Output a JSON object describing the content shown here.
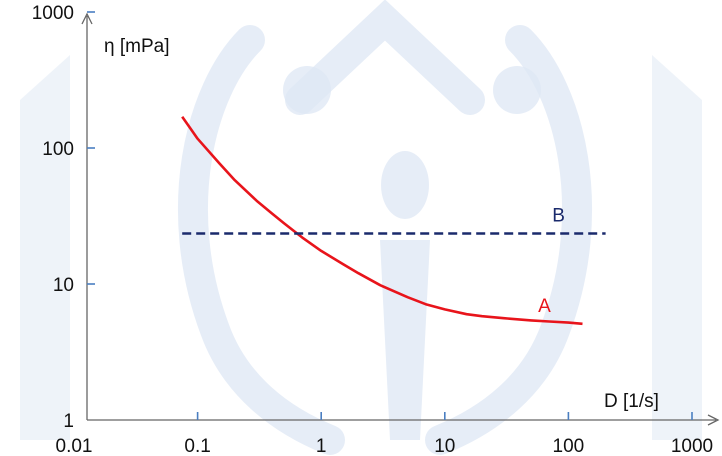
{
  "chart_data": {
    "type": "line",
    "xscale": "log",
    "yscale": "log",
    "xlim": [
      0.01,
      1000
    ],
    "ylim": [
      1,
      1000
    ],
    "x_ticks": [
      "0.01",
      "0.1",
      "1",
      "10",
      "100",
      "1000"
    ],
    "y_ticks": [
      "1",
      "10",
      "100",
      "1000"
    ],
    "xlabel": "D [1/s]",
    "ylabel": "η [mPa]",
    "grid": false,
    "legend": "none",
    "series": [
      {
        "name": "A",
        "color": "#e8141b",
        "style": "solid",
        "x": [
          0.075,
          0.1,
          0.15,
          0.2,
          0.3,
          0.4,
          0.5,
          0.7,
          1,
          1.5,
          2,
          3,
          5,
          7,
          10,
          15,
          20,
          30,
          50,
          70,
          100,
          130
        ],
        "y": [
          170,
          117,
          77,
          58,
          41,
          33,
          28,
          22,
          17.5,
          14,
          12,
          9.8,
          8,
          7.1,
          6.5,
          6.0,
          5.8,
          5.6,
          5.4,
          5.3,
          5.2,
          5.1
        ]
      },
      {
        "name": "B",
        "color": "#1a2a6c",
        "style": "dashed",
        "x": [
          0.075,
          200
        ],
        "y": [
          23.5,
          23.5
        ]
      }
    ]
  },
  "watermark_color": "#dde7f4"
}
